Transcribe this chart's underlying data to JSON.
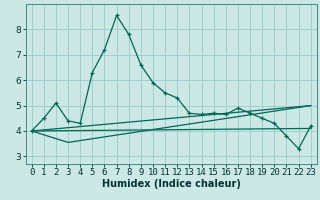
{
  "title": "",
  "xlabel": "Humidex (Indice chaleur)",
  "ylabel": "",
  "background_color": "#cce8e4",
  "line_color": "#006655",
  "grid_color": "#99cccc",
  "xlim": [
    -0.5,
    23.5
  ],
  "ylim": [
    2.7,
    9.0
  ],
  "yticks": [
    3,
    4,
    5,
    6,
    7,
    8
  ],
  "xticks": [
    0,
    1,
    2,
    3,
    4,
    5,
    6,
    7,
    8,
    9,
    10,
    11,
    12,
    13,
    14,
    15,
    16,
    17,
    18,
    19,
    20,
    21,
    22,
    23
  ],
  "main_x": [
    0,
    1,
    2,
    3,
    4,
    5,
    6,
    7,
    8,
    9,
    10,
    11,
    12,
    13,
    14,
    15,
    16,
    17,
    18,
    19,
    20,
    21,
    22,
    23
  ],
  "main_y": [
    4.0,
    4.5,
    5.1,
    4.4,
    4.3,
    6.3,
    7.2,
    8.55,
    7.8,
    6.6,
    5.9,
    5.5,
    5.3,
    4.7,
    4.65,
    4.7,
    4.65,
    4.9,
    4.7,
    4.5,
    4.3,
    3.8,
    3.3,
    4.2
  ],
  "line2_x": [
    0,
    23
  ],
  "line2_y": [
    4.0,
    4.1
  ],
  "line3_x": [
    0,
    23
  ],
  "line3_y": [
    4.0,
    5.0
  ],
  "line4_x": [
    0,
    3,
    23
  ],
  "line4_y": [
    4.0,
    3.55,
    5.0
  ],
  "xlabel_fontsize": 7,
  "tick_fontsize": 6.5
}
